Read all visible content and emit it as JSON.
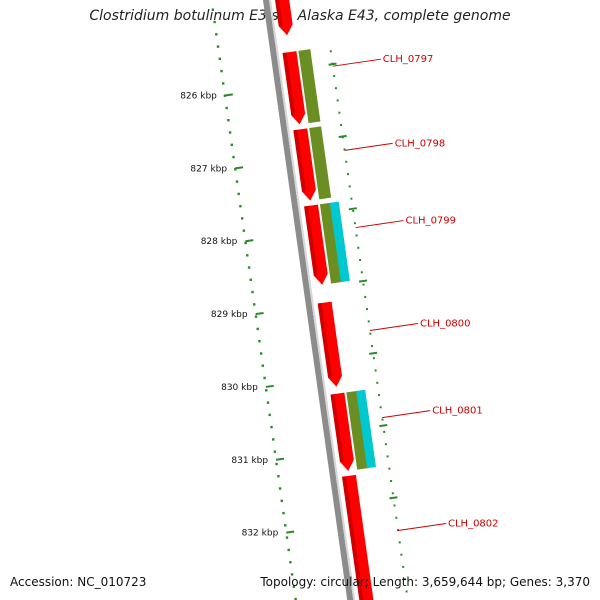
{
  "title": "Clostridium botulinum E3 str. Alaska E43, complete genome",
  "accession": "Accession: NC_010723",
  "summary": "Topology: circular; Length: 3,659,644 bp; Genes: 3,370",
  "colors": {
    "cds": "#ff0000",
    "cds_shade": "#b30000",
    "backbone": "#8c8c8c",
    "olive": "#6b8e23",
    "cyan": "#00c8d0",
    "tick": "#2a8a2a",
    "label": "#cc0000"
  },
  "scale_labels": [
    "826 kbp",
    "827 kbp",
    "828 kbp",
    "829 kbp",
    "830 kbp",
    "831 kbp",
    "832 kbp"
  ],
  "genes": [
    "CLH_0797",
    "CLH_0798",
    "CLH_0799",
    "CLH_0800",
    "CLH_0801",
    "CLH_0802"
  ]
}
